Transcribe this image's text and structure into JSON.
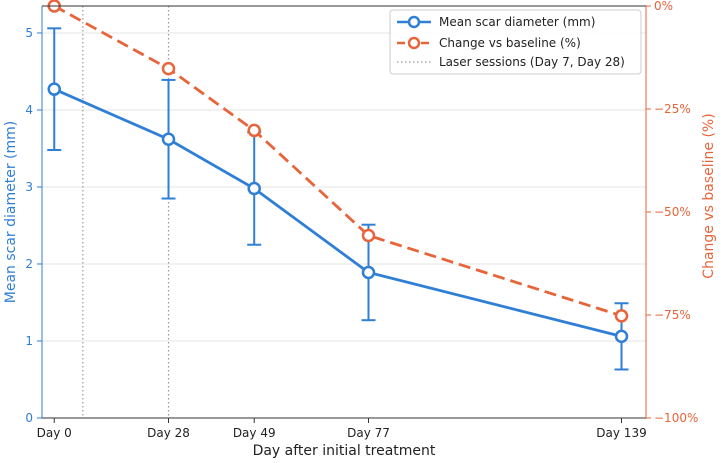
{
  "chart_data": {
    "type": "line",
    "x_axis": {
      "label": "Day after initial treatment",
      "categories": [
        "Day 0",
        "Day 28",
        "Day 49",
        "Day 77",
        "Day 139"
      ],
      "values": [
        0,
        28,
        49,
        77,
        139
      ],
      "lim": [
        -3,
        145
      ]
    },
    "y_left": {
      "label": "Mean scar diameter (mm)",
      "lim": [
        0,
        5.35
      ],
      "ticks": [
        0,
        1,
        2,
        3,
        4,
        5
      ],
      "color": "#2f7fd6"
    },
    "y_right": {
      "label": "Change vs baseline (%)",
      "lim": [
        -100,
        0
      ],
      "ticks": [
        0,
        -25,
        -50,
        -75,
        -100
      ],
      "tick_labels": [
        "0%",
        "−25%",
        "−50%",
        "−75%",
        "−100%"
      ],
      "color": "#e8643a"
    },
    "series": [
      {
        "name": "Mean scar diameter (mm)",
        "axis": "left",
        "style": "solid",
        "color": "#2f7fd6",
        "x": [
          0,
          28,
          49,
          77,
          139
        ],
        "y": [
          4.27,
          3.62,
          2.98,
          1.89,
          1.06
        ],
        "yerr": [
          0.79,
          0.77,
          0.73,
          0.62,
          0.43
        ]
      },
      {
        "name": "Change vs baseline (%)",
        "axis": "right",
        "style": "dashed",
        "color": "#e8643a",
        "x": [
          0,
          28,
          49,
          77,
          139
        ],
        "y": [
          0,
          -15.2,
          -30.2,
          -55.7,
          -75.2
        ]
      }
    ],
    "vlines": {
      "name": "Laser sessions (Day 7, Day 28)",
      "x": [
        7,
        28
      ],
      "color": "#999999"
    },
    "grid": "horizontal",
    "legend_position": "top-right"
  }
}
